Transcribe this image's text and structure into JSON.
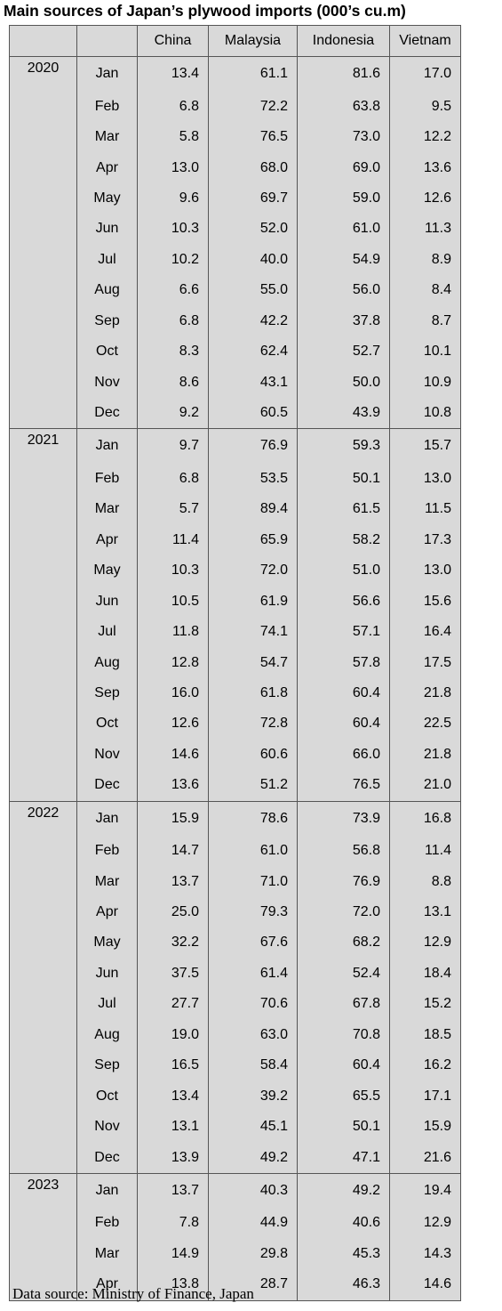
{
  "title": "Main sources of Japan’s plywood imports (000’s cu.m)",
  "columns": [
    "",
    "",
    "China",
    "Malaysia",
    "Indonesia",
    "Vietnam"
  ],
  "years": [
    {
      "year": "2020",
      "rows": [
        [
          "Jan",
          "13.4",
          "61.1",
          "81.6",
          "17.0"
        ],
        [
          "Feb",
          "6.8",
          "72.2",
          "63.8",
          "9.5"
        ],
        [
          "Mar",
          "5.8",
          "76.5",
          "73.0",
          "12.2"
        ],
        [
          "Apr",
          "13.0",
          "68.0",
          "69.0",
          "13.6"
        ],
        [
          "May",
          "9.6",
          "69.7",
          "59.0",
          "12.6"
        ],
        [
          "Jun",
          "10.3",
          "52.0",
          "61.0",
          "11.3"
        ],
        [
          "Jul",
          "10.2",
          "40.0",
          "54.9",
          "8.9"
        ],
        [
          "Aug",
          "6.6",
          "55.0",
          "56.0",
          "8.4"
        ],
        [
          "Sep",
          "6.8",
          "42.2",
          "37.8",
          "8.7"
        ],
        [
          "Oct",
          "8.3",
          "62.4",
          "52.7",
          "10.1"
        ],
        [
          "Nov",
          "8.6",
          "43.1",
          "50.0",
          "10.9"
        ],
        [
          "Dec",
          "9.2",
          "60.5",
          "43.9",
          "10.8"
        ]
      ]
    },
    {
      "year": "2021",
      "rows": [
        [
          "Jan",
          "9.7",
          "76.9",
          "59.3",
          "15.7"
        ],
        [
          "Feb",
          "6.8",
          "53.5",
          "50.1",
          "13.0"
        ],
        [
          "Mar",
          "5.7",
          "89.4",
          "61.5",
          "11.5"
        ],
        [
          "Apr",
          "11.4",
          "65.9",
          "58.2",
          "17.3"
        ],
        [
          "May",
          "10.3",
          "72.0",
          "51.0",
          "13.0"
        ],
        [
          "Jun",
          "10.5",
          "61.9",
          "56.6",
          "15.6"
        ],
        [
          "Jul",
          "11.8",
          "74.1",
          "57.1",
          "16.4"
        ],
        [
          "Aug",
          "12.8",
          "54.7",
          "57.8",
          "17.5"
        ],
        [
          "Sep",
          "16.0",
          "61.8",
          "60.4",
          "21.8"
        ],
        [
          "Oct",
          "12.6",
          "72.8",
          "60.4",
          "22.5"
        ],
        [
          "Nov",
          "14.6",
          "60.6",
          "66.0",
          "21.8"
        ],
        [
          "Dec",
          "13.6",
          "51.2",
          "76.5",
          "21.0"
        ]
      ]
    },
    {
      "year": "2022",
      "rows": [
        [
          "Jan",
          "15.9",
          "78.6",
          "73.9",
          "16.8"
        ],
        [
          "Feb",
          "14.7",
          "61.0",
          "56.8",
          "11.4"
        ],
        [
          "Mar",
          "13.7",
          "71.0",
          "76.9",
          "8.8"
        ],
        [
          "Apr",
          "25.0",
          "79.3",
          "72.0",
          "13.1"
        ],
        [
          "May",
          "32.2",
          "67.6",
          "68.2",
          "12.9"
        ],
        [
          "Jun",
          "37.5",
          "61.4",
          "52.4",
          "18.4"
        ],
        [
          "Jul",
          "27.7",
          "70.6",
          "67.8",
          "15.2"
        ],
        [
          "Aug",
          "19.0",
          "63.0",
          "70.8",
          "18.5"
        ],
        [
          "Sep",
          "16.5",
          "58.4",
          "60.4",
          "16.2"
        ],
        [
          "Oct",
          "13.4",
          "39.2",
          "65.5",
          "17.1"
        ],
        [
          "Nov",
          "13.1",
          "45.1",
          "50.1",
          "15.9"
        ],
        [
          "Dec",
          "13.9",
          "49.2",
          "47.1",
          "21.6"
        ]
      ]
    },
    {
      "year": "2023",
      "rows": [
        [
          "Jan",
          "13.7",
          "40.3",
          "49.2",
          "19.4"
        ],
        [
          "Feb",
          "7.8",
          "44.9",
          "40.6",
          "12.9"
        ],
        [
          "Mar",
          "14.9",
          "29.8",
          "45.3",
          "14.3"
        ],
        [
          "Apr",
          "13.8",
          "28.7",
          "46.3",
          "14.6"
        ]
      ]
    }
  ],
  "source": "Data source: Ministry of Finance, Japan"
}
